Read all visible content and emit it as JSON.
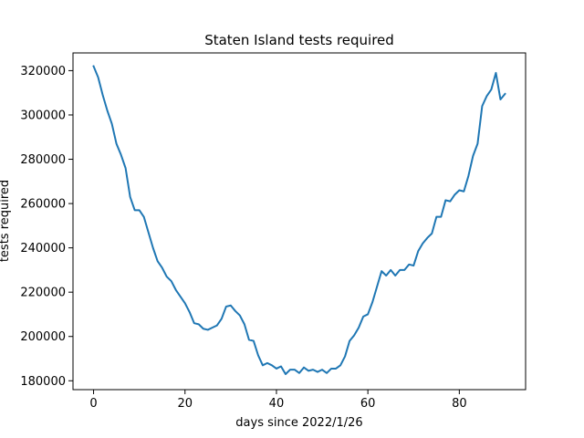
{
  "chart_data": {
    "type": "line",
    "title": "Staten Island tests required",
    "xlabel": "days since 2022/1/26",
    "ylabel": "tests required",
    "xlim": [
      -4.5,
      94.5
    ],
    "ylim": [
      176000,
      328000
    ],
    "xticks": [
      0,
      20,
      40,
      60,
      80
    ],
    "yticks": [
      180000,
      200000,
      220000,
      240000,
      260000,
      280000,
      300000,
      320000
    ],
    "xtick_labels": [
      "0",
      "20",
      "40",
      "60",
      "80"
    ],
    "ytick_labels": [
      "180000",
      "200000",
      "220000",
      "240000",
      "260000",
      "280000",
      "300000",
      "320000"
    ],
    "grid": false,
    "series": [
      {
        "color": "#1f77b4",
        "x": [
          0,
          1,
          2,
          3,
          4,
          5,
          6,
          7,
          8,
          9,
          10,
          11,
          12,
          13,
          14,
          15,
          16,
          17,
          18,
          19,
          20,
          21,
          22,
          23,
          24,
          25,
          26,
          27,
          28,
          29,
          30,
          31,
          32,
          33,
          34,
          35,
          36,
          37,
          38,
          39,
          40,
          41,
          42,
          43,
          44,
          45,
          46,
          47,
          48,
          49,
          50,
          51,
          52,
          53,
          54,
          55,
          56,
          57,
          58,
          59,
          60,
          61,
          62,
          63,
          64,
          65,
          66,
          67,
          68,
          69,
          70,
          71,
          72,
          73,
          74,
          75,
          76,
          77,
          78,
          79,
          80,
          81,
          82,
          83,
          84,
          85,
          86,
          87,
          88,
          89,
          90
        ],
        "y": [
          322000,
          317000,
          309000,
          302000,
          296000,
          287000,
          282000,
          276000,
          263000,
          257000,
          257000,
          254000,
          247000,
          240000,
          234000,
          231000,
          227000,
          225000,
          221000,
          218000,
          215000,
          211000,
          206000,
          205500,
          203500,
          203000,
          204000,
          205000,
          208000,
          213500,
          214000,
          211500,
          209500,
          205500,
          198500,
          198000,
          191500,
          187000,
          188000,
          187000,
          185500,
          186500,
          183000,
          185000,
          185000,
          183500,
          186000,
          184500,
          185000,
          184000,
          185000,
          183500,
          185500,
          185500,
          187000,
          191000,
          198000,
          200500,
          204000,
          209000,
          210000,
          215500,
          222500,
          229500,
          227500,
          230000,
          227500,
          230000,
          230000,
          232500,
          232000,
          238500,
          242000,
          244500,
          246500,
          254000,
          254000,
          261500,
          261000,
          264000,
          266000,
          265500,
          272500,
          281500,
          287000,
          304000,
          308500,
          311500,
          319000,
          307000,
          309500
        ]
      }
    ]
  }
}
